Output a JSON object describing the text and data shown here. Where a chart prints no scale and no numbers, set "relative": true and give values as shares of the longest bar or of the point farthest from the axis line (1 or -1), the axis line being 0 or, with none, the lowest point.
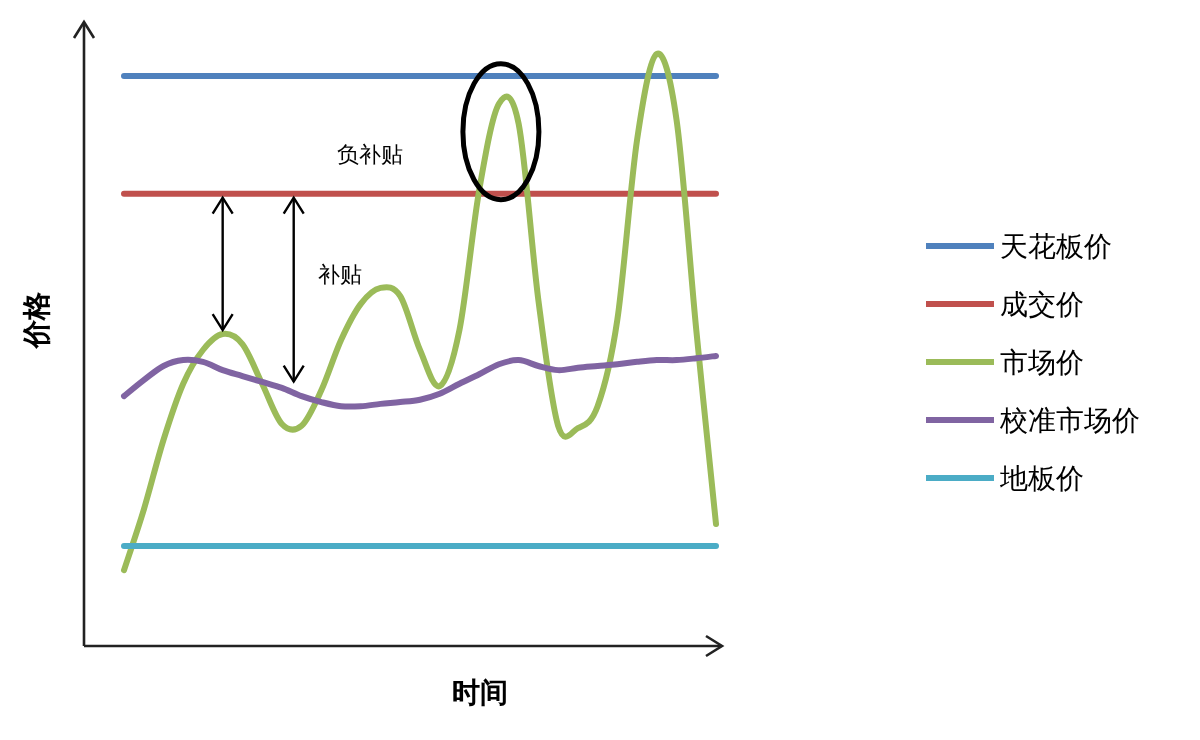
{
  "chart_data": {
    "type": "line",
    "relative": true,
    "xlabel": "时间",
    "ylabel": "价格",
    "legend": "right",
    "annotations": [
      "负补贴",
      "补贴"
    ],
    "categories": [
      null,
      null,
      null,
      null,
      null,
      null,
      null,
      null,
      null,
      null,
      null,
      null,
      null,
      null,
      null,
      null,
      null,
      null,
      null,
      null,
      null,
      null,
      null,
      null,
      null,
      null,
      null,
      null,
      null,
      null,
      null
    ],
    "series": [
      {
        "name": "天花板价",
        "color": "#4f81bd",
        "values": [
          0.963,
          0.963,
          0.963,
          0.963,
          0.963,
          0.963,
          0.963,
          0.963,
          0.963,
          0.963,
          0.963,
          0.963,
          0.963,
          0.963,
          0.963,
          0.963,
          0.963,
          0.963,
          0.963,
          0.963,
          0.963,
          0.963,
          0.963,
          0.963,
          0.963,
          0.963,
          0.963,
          0.963,
          0.963,
          0.963,
          0.963
        ]
      },
      {
        "name": "成交价",
        "color": "#c0504d",
        "values": [
          0.764,
          0.764,
          0.764,
          0.764,
          0.764,
          0.764,
          0.764,
          0.764,
          0.764,
          0.764,
          0.764,
          0.764,
          0.764,
          0.764,
          0.764,
          0.764,
          0.764,
          0.764,
          0.764,
          0.764,
          0.764,
          0.764,
          0.764,
          0.764,
          0.764,
          0.764,
          0.764,
          0.764,
          0.764,
          0.764,
          0.764
        ]
      },
      {
        "name": "市场价",
        "color": "#9bbb59",
        "values": [
          0.128,
          0.23,
          0.348,
          0.443,
          0.5,
          0.527,
          0.51,
          0.443,
          0.375,
          0.372,
          0.432,
          0.517,
          0.578,
          0.605,
          0.591,
          0.5,
          0.439,
          0.534,
          0.77,
          0.916,
          0.882,
          0.584,
          0.372,
          0.368,
          0.405,
          0.551,
          0.855,
          1,
          0.889,
          0.534,
          0.206
        ]
      },
      {
        "name": "校准市场价",
        "color": "#8064a2",
        "values": [
          0.422,
          0.449,
          0.473,
          0.483,
          0.48,
          0.466,
          0.456,
          0.446,
          0.436,
          0.422,
          0.412,
          0.405,
          0.405,
          0.409,
          0.412,
          0.416,
          0.426,
          0.443,
          0.459,
          0.476,
          0.483,
          0.473,
          0.466,
          0.47,
          0.473,
          0.476,
          0.48,
          0.483,
          0.483,
          0.486,
          0.49
        ]
      },
      {
        "name": "地板价",
        "color": "#4bacc6",
        "values": [
          0.169,
          0.169,
          0.169,
          0.169,
          0.169,
          0.169,
          0.169,
          0.169,
          0.169,
          0.169,
          0.169,
          0.169,
          0.169,
          0.169,
          0.169,
          0.169,
          0.169,
          0.169,
          0.169,
          0.169,
          0.169,
          0.169,
          0.169,
          0.169,
          0.169,
          0.169,
          0.169,
          0.169,
          0.169,
          0.169,
          0.169
        ]
      }
    ]
  }
}
